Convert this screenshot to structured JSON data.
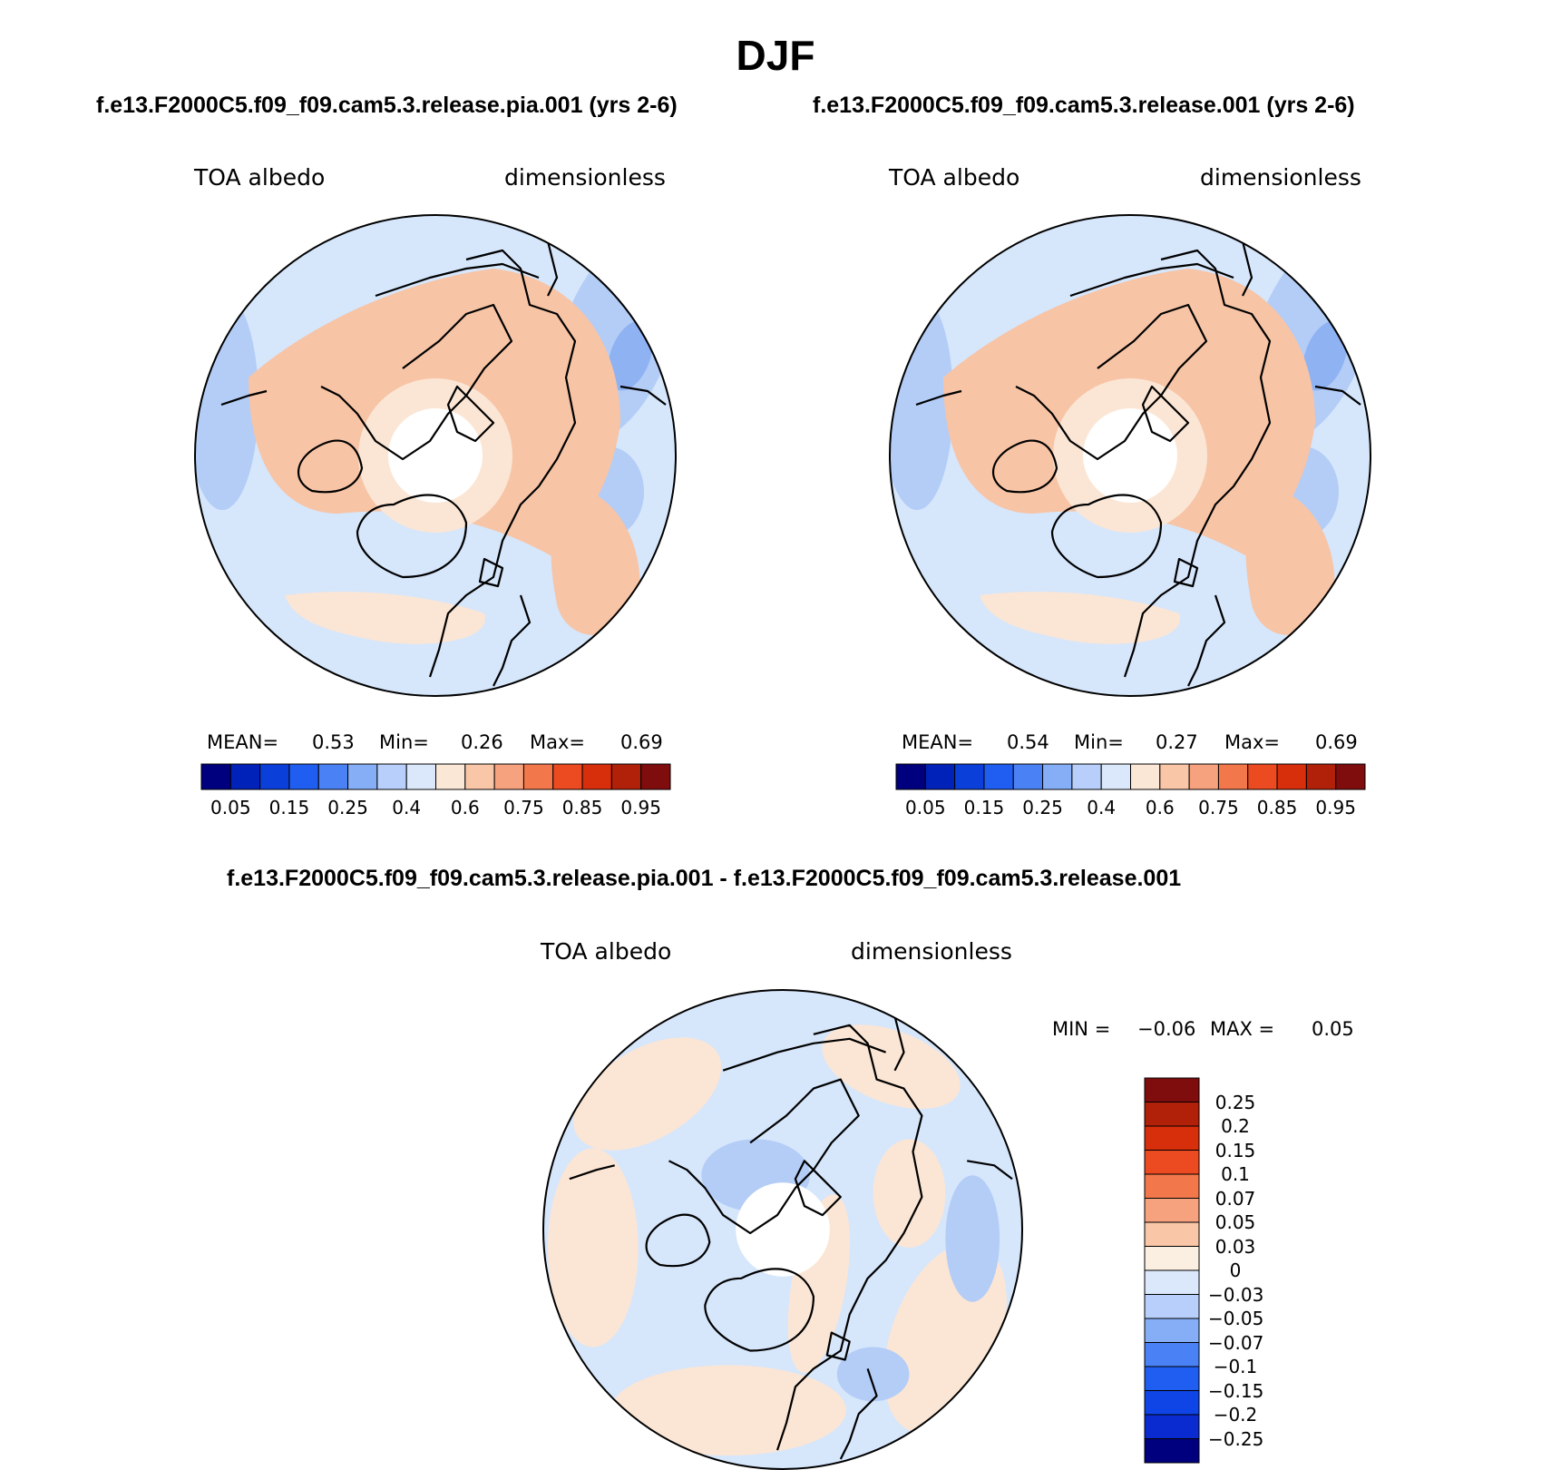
{
  "title": "DJF",
  "panels": {
    "left": {
      "case_title": "f.e13.F2000C5.f09_f09.cam5.3.release.pia.001 (yrs 2-6)",
      "variable": "TOA albedo",
      "units": "dimensionless",
      "mean_label": "MEAN=",
      "mean_value": "0.53",
      "min_label": "Min=",
      "min_value": "0.26",
      "max_label": "Max=",
      "max_value": "0.69"
    },
    "right": {
      "case_title": "f.e13.F2000C5.f09_f09.cam5.3.release.001 (yrs 2-6)",
      "variable": "TOA albedo",
      "units": "dimensionless",
      "mean_label": "MEAN=",
      "mean_value": "0.54",
      "min_label": "Min=",
      "min_value": "0.27",
      "max_label": "Max=",
      "max_value": "0.69"
    },
    "diff": {
      "case_title": "f.e13.F2000C5.f09_f09.cam5.3.release.pia.001 - f.e13.F2000C5.f09_f09.cam5.3.release.001",
      "variable": "TOA albedo",
      "units": "dimensionless",
      "min_label": "MIN =",
      "min_value": "−0.06",
      "max_label": "MAX =",
      "max_value": "0.05"
    }
  },
  "colorbar_abs": {
    "colors": [
      "#00007f",
      "#0022b8",
      "#0a3fd9",
      "#1f5ef0",
      "#4a82f5",
      "#86aef7",
      "#b7cffa",
      "#dbe8fb",
      "#fbe7d6",
      "#f9c6a8",
      "#f6a27e",
      "#f2784c",
      "#ec4a21",
      "#d72e0c",
      "#b12008",
      "#7f0d0d"
    ],
    "labels": [
      "0.05",
      "0.15",
      "0.25",
      "0.4",
      "0.6",
      "0.75",
      "0.85",
      "0.95"
    ]
  },
  "colorbar_diff": {
    "colors": [
      "#00007f",
      "#0a2bd0",
      "#0f45e6",
      "#1f5ef0",
      "#4a82f5",
      "#86aef7",
      "#b7cffa",
      "#dbe8fb",
      "#fbefe2",
      "#f9c6a8",
      "#f6a27e",
      "#f2784c",
      "#ec4a21",
      "#d72e0c",
      "#b12008",
      "#7f0d0d"
    ],
    "labels": [
      "0.25",
      "0.2",
      "0.15",
      "0.1",
      "0.07",
      "0.05",
      "0.03",
      "0",
      "−0.03",
      "−0.05",
      "−0.07",
      "−0.1",
      "−0.15",
      "−0.2",
      "−0.25"
    ]
  },
  "map_colors": {
    "ocean_base": "#d6e6fb",
    "mid_blue": "#b3cdf7",
    "deep_blue": "#8fb2f2",
    "peach_light": "#fbe6d5",
    "peach": "#f7c4a6",
    "diff_base": "#d6e6fb",
    "diff_peach": "#fbe6d5",
    "diff_blue": "#b3cdf7"
  }
}
